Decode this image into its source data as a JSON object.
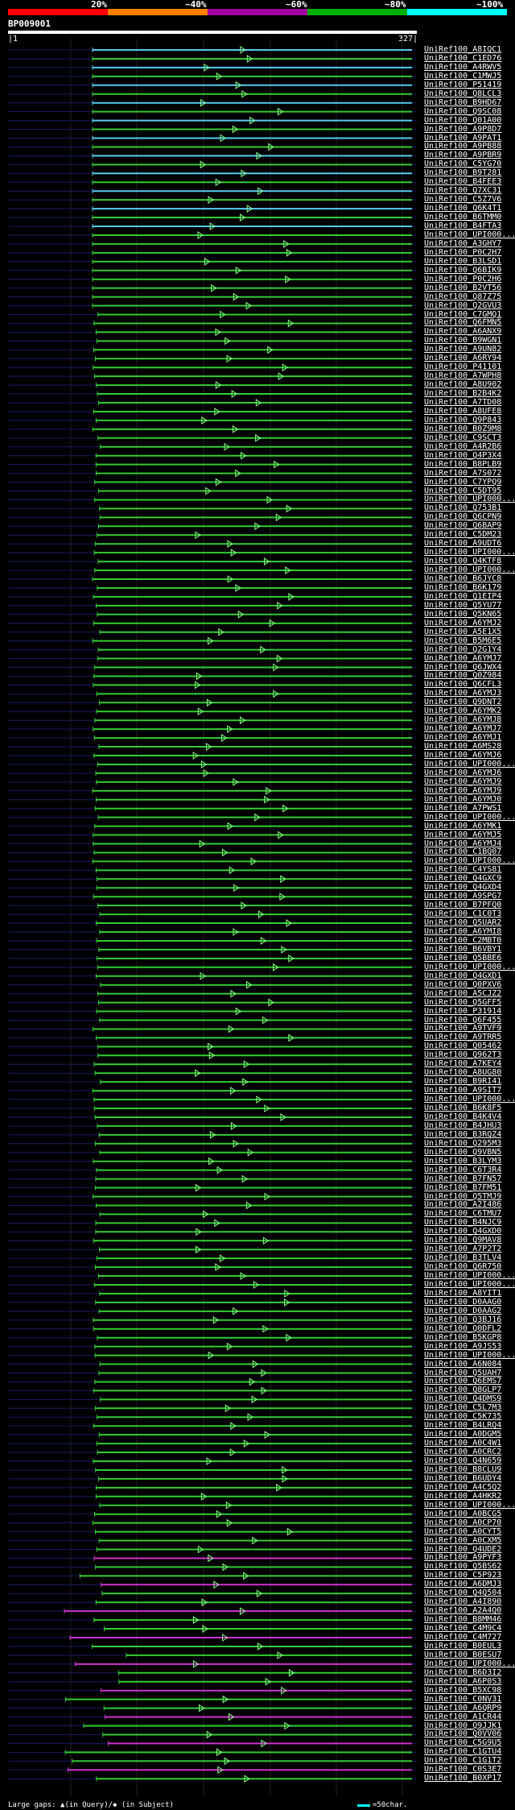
{
  "legend": {
    "segments": [
      {
        "label": "",
        "color": "#ff0000"
      },
      {
        "label": "20%",
        "color": "#ff8000"
      },
      {
        "label": "~40%",
        "color": "#ff00ff"
      },
      {
        "label": "~60%",
        "color": "#00ff00"
      },
      {
        "label": "~80%",
        "color": "#00ffff"
      }
    ],
    "tick_labels": [
      "20%",
      "~40%",
      "~60%",
      "~80%",
      "~100%"
    ]
  },
  "query": {
    "name": "BP009001",
    "start": "|1",
    "end": "327|"
  },
  "hits": [
    "UniRef100_A8IQC1",
    "UniRef100_C1ED76",
    "UniRef100_A4RWV5",
    "UniRef100_C1MWJ5",
    "UniRef100_P51419",
    "UniRef100_Q8LCL3",
    "UniRef100_B9HD67",
    "UniRef100_Q9SC08",
    "UniRef100_Q01A00",
    "UniRef100_A9P8D7",
    "UniRef100_A9PAT1",
    "UniRef100_A9PB88",
    "UniRef100_A9PBR9",
    "UniRef100_C5YG70",
    "UniRef100_B9T281",
    "UniRef100_B4FEE3",
    "UniRef100_Q7XC31",
    "UniRef100_C5Z7V6",
    "UniRef100_Q6K4T1",
    "UniRef100_B6TMM0",
    "UniRef100_B4FTA3",
    "UniRef100_UPI000...",
    "UniRef100_A3GHY7",
    "UniRef100_P0C2H7",
    "UniRef100_B3LSD1",
    "UniRef100_Q6BIK9",
    "UniRef100_P0C2H6",
    "UniRef100_B2VT56",
    "UniRef100_Q87Z75",
    "UniRef100_Q2GVU3",
    "UniRef100_C7GMQ1",
    "UniRef100_Q6FMN5",
    "UniRef100_A6ANX9",
    "UniRef100_B9WGN1",
    "UniRef100_A9UN82",
    "UniRef100_A6RY94",
    "UniRef100_P41101",
    "UniRef100_A7WPH8",
    "UniRef100_A8U902",
    "UniRef100_B2B4K2",
    "UniRef100_A7TD08",
    "UniRef100_A8UFE8",
    "UniRef100_Q9P843",
    "UniRef100_B0Z9M8",
    "UniRef100_C9SCT3",
    "UniRef100_A4R2B6",
    "UniRef100_Q4P3X4",
    "UniRef100_B8PLB9",
    "UniRef100_A7S072",
    "UniRef100_C7YPQ9",
    "UniRef100_C5DT95",
    "UniRef100_UPI000...",
    "UniRef100_Q753B1",
    "UniRef100_Q6CPN9",
    "UniRef100_Q6BAP9",
    "UniRef100_C5DM23",
    "UniRef100_A9UDT6",
    "UniRef100_UPI000...",
    "UniRef100_Q4KTF8",
    "UniRef100_UPI000...",
    "UniRef100_B6JYC8",
    "UniRef100_B6K179",
    "UniRef100_Q1EIP4",
    "UniRef100_Q5YU77",
    "UniRef100_Q5KN65",
    "UniRef100_A6YMJ2",
    "UniRef100_A5E1X5",
    "UniRef100_B5M6E5",
    "UniRef100_Q2G1Y4",
    "UniRef100_A6YMJ7",
    "UniRef100_Q6JWX4",
    "UniRef100_Q0Z984",
    "UniRef100_Q6CFL3",
    "UniRef100_A6YMJ3",
    "UniRef100_Q9DNT2",
    "UniRef100_A6YMK2",
    "UniRef100_A6YMJ8",
    "UniRef100_A6YMJ7",
    "UniRef100_A6YMJ1",
    "UniRef100_A6MS28",
    "UniRef100_A6YMJ6",
    "UniRef100_UPI000...",
    "UniRef100_A6YMJ6",
    "UniRef100_A6YMJ9",
    "UniRef100_A6YMJ9",
    "UniRef100_A6YMJ0",
    "UniRef100_A7PWS1",
    "UniRef100_UPI000...",
    "UniRef100_A6YMK1",
    "UniRef100_A6YMJ5",
    "UniRef100_A6YMJ4",
    "UniRef100_C1BQ07",
    "UniRef100_UPI000...",
    "UniRef100_C4YS81",
    "UniRef100_Q4GXC9",
    "UniRef100_Q4GXD4",
    "UniRef100_A9SPG7",
    "UniRef100_B7PFQ0",
    "UniRef100_C1C0T3",
    "UniRef100_Q5UAR2",
    "UniRef100_A6YMI8",
    "UniRef100_C2MBT0",
    "UniRef100_B6VBY1",
    "UniRef100_Q5BBE6",
    "UniRef100_UPI000...",
    "UniRef100_Q4GXD1",
    "UniRef100_Q0PXV6",
    "UniRef100_A5CJZ2",
    "UniRef100_Q5GFF5",
    "UniRef100_P31914",
    "UniRef100_Q6F455",
    "UniRef100_A9TVF9",
    "UniRef100_A9TRR5",
    "UniRef100_Q05462",
    "UniRef100_Q962T3",
    "UniRef100_A7KEY4",
    "UniRef100_A8UG80",
    "UniRef100_B9RI41",
    "UniRef100_A9SIT7",
    "UniRef100_UPI000...",
    "UniRef100_B6K8F5",
    "UniRef100_B4K4V4",
    "UniRef100_B4JHU3",
    "UniRef100_B3RQZ4",
    "UniRef100_Q295M3",
    "UniRef100_Q9VBN5",
    "UniRef100_B3LYM3",
    "UniRef100_C6T3R4",
    "UniRef100_B7FN57",
    "UniRef100_B7FM51",
    "UniRef100_Q5TMJ9",
    "UniRef100_A2I486",
    "UniRef100_C6TMU7",
    "UniRef100_B4NJC9",
    "UniRef100_Q4GXD0",
    "UniRef100_Q9MAV8",
    "UniRef100_A7P2T2",
    "UniRef100_B3TLV4",
    "UniRef100_Q6R750",
    "UniRef100_UPI000...",
    "UniRef100_UPI000...",
    "UniRef100_A8YIT1",
    "UniRef100_D0AAG0",
    "UniRef100_D0AAG2",
    "UniRef100_Q3BJ16",
    "UniRef100_Q0DFL2",
    "UniRef100_B5KGP8",
    "UniRef100_A9JS53",
    "UniRef100_UPI000...",
    "UniRef100_A6N084",
    "UniRef100_Q5UAH7",
    "UniRef100_Q6EMS7",
    "UniRef100_Q8GLP7",
    "UniRef100_Q4DMS9",
    "UniRef100_C5L7M3",
    "UniRef100_C5K735",
    "UniRef100_B4LRQ4",
    "UniRef100_A0DGM5",
    "UniRef100_A0C4W1",
    "UniRef100_A0CRC2",
    "UniRef100_Q4N659",
    "UniRef100_B8CLU9",
    "UniRef100_B6UDY4",
    "UniRef100_A4C5Q2",
    "UniRef100_A4HKR2",
    "UniRef100_UPI000...",
    "UniRef100_A0BCG5",
    "UniRef100_A0CP70",
    "UniRef100_A0CYT5",
    "UniRef100_A0CXM5",
    "UniRef100_Q4UDE2",
    "UniRef100_A9PYF3",
    "UniRef100_Q5BS62",
    "UniRef100_C5P923",
    "UniRef100_A6DMJ3",
    "UniRef100_Q4Q504",
    "UniRef100_A4I890",
    "UniRef100_A2A4Q0",
    "UniRef100_B8MM46",
    "UniRef100_C4M9C4",
    "UniRef100_C4M727",
    "UniRef100_B0EUL3",
    "UniRef100_B0ESU7",
    "UniRef100_UPI000...",
    "UniRef100_B6D3I2",
    "UniRef100_A6P0S3",
    "UniRef100_B5XC98",
    "UniRef100_C0NV31",
    "UniRef100_A6QRP9",
    "UniRef100_A1CR44",
    "UniRef100_Q9JJK1",
    "UniRef100_Q0VV06",
    "UniRef100_C5G9U5",
    "UniRef100_C1GTU4",
    "UniRef100_C1G1T2",
    "UniRef100_C0S3E7",
    "UniRef100_B0XP17"
  ],
  "footer": {
    "gaps_text": "Large gaps: ▲(in Query)/◆ (in Subject)",
    "scale_text": "=50char."
  }
}
